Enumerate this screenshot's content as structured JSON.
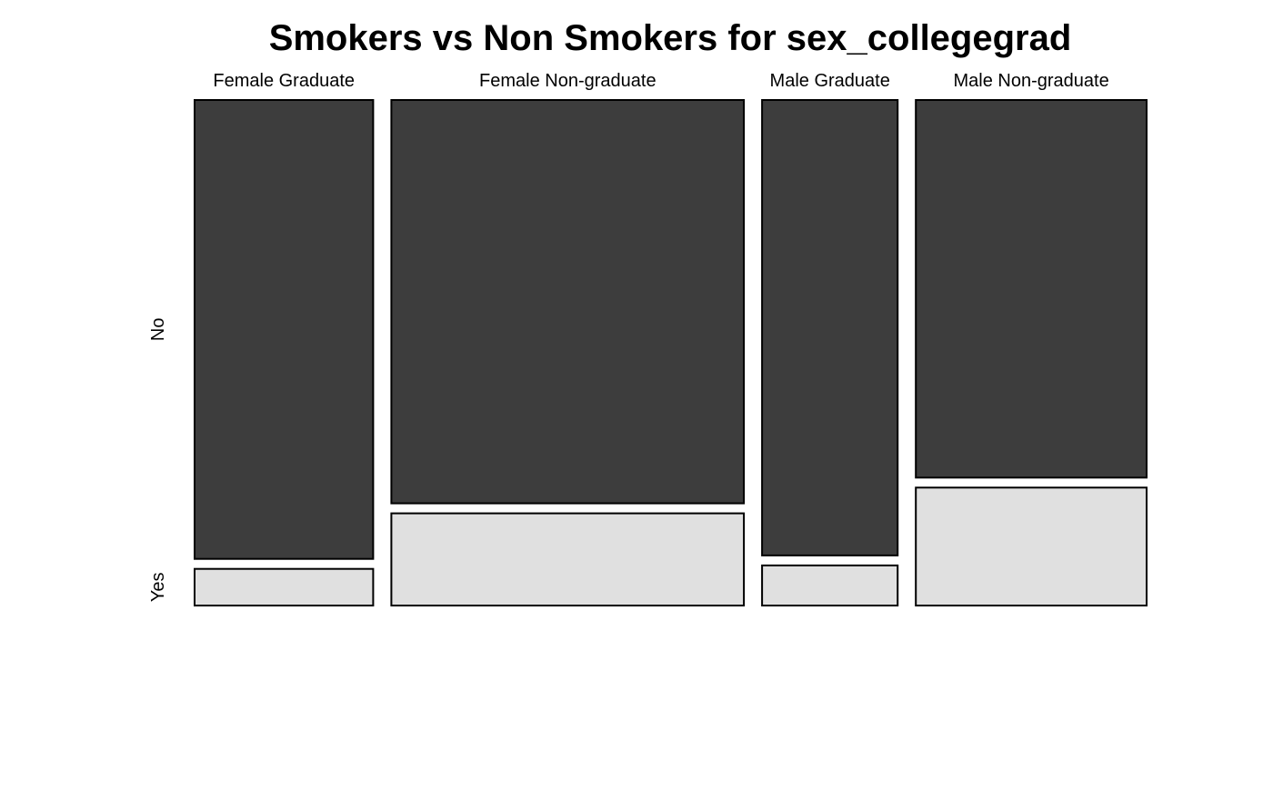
{
  "chart_data": {
    "type": "mosaic",
    "title": "Smokers vs Non Smokers for sex_collegegrad",
    "xlabel": "",
    "ylabel": "",
    "categories": [
      "Female Graduate",
      "Female Non-graduate",
      "Male Graduate",
      "Male Non-graduate"
    ],
    "column_proportions": [
      0.195,
      0.385,
      0.148,
      0.252
    ],
    "levels": [
      "No",
      "Yes"
    ],
    "series": [
      {
        "name": "No",
        "values": [
          0.926,
          0.814,
          0.919,
          0.762
        ]
      },
      {
        "name": "Yes",
        "values": [
          0.074,
          0.186,
          0.081,
          0.238
        ]
      }
    ],
    "colors": {
      "No": "#3d3d3d",
      "Yes": "#e0e0e0",
      "border": "#000000"
    },
    "legend": "none",
    "grid": false
  }
}
